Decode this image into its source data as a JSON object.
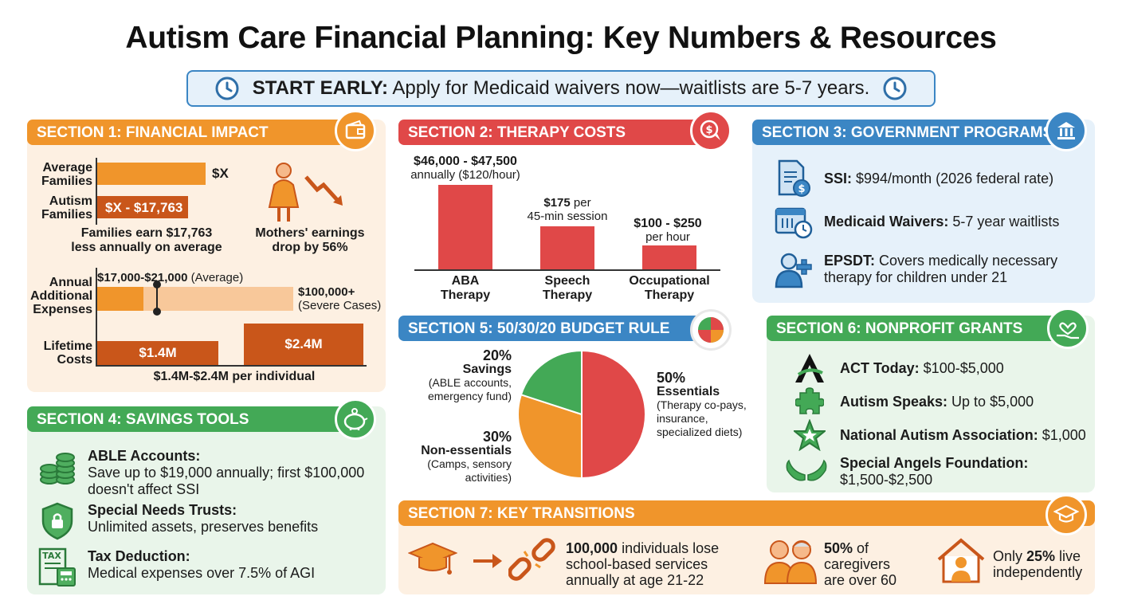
{
  "title": "Autism Care Financial Planning: Key Numbers & Resources",
  "banner": {
    "lead": "START EARLY:",
    "text": "Apply for Medicaid waivers now—waitlists are 5-7 years."
  },
  "section1": {
    "header": "SECTION 1: FINANCIAL IMPACT",
    "avg_label_1": "Average",
    "avg_label_2": "Families",
    "avg_value": "$X",
    "aut_label_1": "Autism",
    "aut_label_2": "Families",
    "aut_value": "$X - $17,763",
    "caption_1": "Families earn $17,763",
    "caption_2": "less annually on average",
    "mothers_1": "Mothers' earnings",
    "mothers_2": "drop by 56%",
    "annual_label_1": "Annual",
    "annual_label_2": "Additional",
    "annual_label_3": "Expenses",
    "annual_avg_bold": "$17,000-$21,000",
    "annual_avg_note": "(Average)",
    "annual_severe_bold": "$100,000+",
    "annual_severe_note": "(Severe Cases)",
    "lifetime_label_1": "Lifetime",
    "lifetime_label_2": "Costs",
    "lifetime_low": "$1.4M",
    "lifetime_high": "$2.4M",
    "lifetime_caption": "$1.4M-$2.4M per individual"
  },
  "section2": {
    "header": "SECTION 2: THERAPY COSTS",
    "aba_value": "$46,000 - $47,500",
    "aba_note": "annually ($120/hour)",
    "aba_label_1": "ABA",
    "aba_label_2": "Therapy",
    "speech_value": "$175",
    "speech_unit": " per",
    "speech_note": "45-min session",
    "speech_label_1": "Speech",
    "speech_label_2": "Therapy",
    "ot_value": "$100 - $250",
    "ot_note": "per hour",
    "ot_label_1": "Occupational",
    "ot_label_2": "Therapy"
  },
  "section3": {
    "header": "SECTION 3: GOVERNMENT PROGRAMS",
    "ssi_bold": "SSI:",
    "ssi_text": " $994/month (2026 federal rate)",
    "medicaid_bold": "Medicaid Waivers:",
    "medicaid_text": " 5-7 year waitlists",
    "epsdt_bold": "EPSDT:",
    "epsdt_text_1": " Covers medically necessary",
    "epsdt_text_2": "therapy for children under 21"
  },
  "section4": {
    "header": "SECTION 4: SAVINGS TOOLS",
    "able_title": "ABLE Accounts:",
    "able_text_1": "Save up to $19,000 annually; first $100,000",
    "able_text_2": "doesn't affect SSI",
    "snt_title": "Special Needs Trusts:",
    "snt_text": "Unlimited assets, preserves benefits",
    "tax_title": "Tax Deduction:",
    "tax_text": "Medical expenses over 7.5% of AGI",
    "tax_icon_text": "TAX"
  },
  "section5": {
    "header": "SECTION 5: 50/30/20 BUDGET RULE",
    "savings_pct": "20%",
    "savings_label": "Savings",
    "savings_note_1": "(ABLE accounts,",
    "savings_note_2": "emergency fund)",
    "nonessential_pct": "30%",
    "nonessential_label": "Non-essentials",
    "nonessential_note_1": "(Camps, sensory",
    "nonessential_note_2": "activities)",
    "essential_pct": "50%",
    "essential_label": "Essentials",
    "essential_note_1": "(Therapy co-pays,",
    "essential_note_2": "insurance,",
    "essential_note_3": "specialized diets)"
  },
  "section6": {
    "header": "SECTION 6: NONPROFIT GRANTS",
    "act_bold": "ACT Today:",
    "act_text": " $100-$5,000",
    "speaks_bold": "Autism Speaks:",
    "speaks_text": " Up to $5,000",
    "naa_bold": "National Autism Association:",
    "naa_text": " $1,000",
    "angels_bold": "Special Angels Foundation:",
    "angels_text": "$1,500-$2,500"
  },
  "section7": {
    "header": "SECTION 7: KEY TRANSITIONS",
    "lose_bold": "100,000",
    "lose_text_1": " individuals lose",
    "lose_text_2": "school-based services",
    "lose_text_3": "annually at age 21-22",
    "care_bold": "50%",
    "care_text_1": " of",
    "care_text_2": "caregivers",
    "care_text_3": "are over 60",
    "live_pre": "Only ",
    "live_bold": "25%",
    "live_text_1": " live",
    "live_text_2": "independently"
  },
  "chart_data": [
    {
      "type": "bar",
      "categories": [
        "Average Families",
        "Autism Families"
      ],
      "values": [
        "$X",
        "$X - $17,763"
      ]
    },
    {
      "type": "bar",
      "categories": [
        "Lifetime Costs low",
        "Lifetime Costs high"
      ],
      "values": [
        1.4,
        2.4
      ]
    },
    {
      "type": "bar",
      "categories": [
        "ABA Therapy",
        "Speech Therapy",
        "Occupational Therapy"
      ],
      "values": [
        "$46,000 - $47,500",
        "$175 per 45-min session",
        "$100 - $250 per hour"
      ]
    },
    {
      "type": "pie",
      "categories": [
        "Essentials",
        "Non-essentials",
        "Savings"
      ],
      "values": [
        50,
        30,
        20
      ]
    }
  ],
  "colors": {
    "orange": "#f0952b",
    "red": "#e04848",
    "blue": "#3b86c4",
    "green": "#43a956",
    "dark_orange": "#c9561a"
  }
}
